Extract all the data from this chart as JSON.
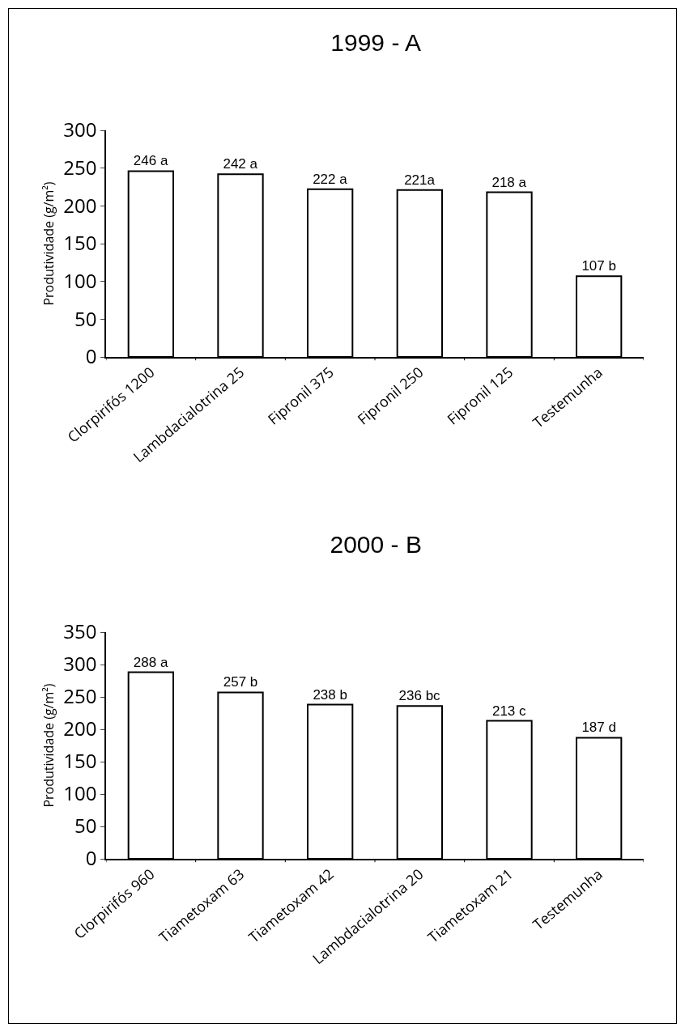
{
  "chart_data": [
    {
      "type": "bar",
      "title": "1999 - A",
      "ylabel": "Produtividade (g/m²)",
      "categories": [
        "Clorpirifós 1200",
        "Lambdacialotrina 25",
        "Fipronil 375",
        "Fipronil 250",
        "Fipronil 125",
        "Testemunha"
      ],
      "values": [
        246,
        242,
        222,
        221,
        218,
        107
      ],
      "value_labels": [
        "246 a",
        "242 a",
        "222 a",
        "221a",
        "218 a",
        "107 b"
      ],
      "color": "#ffffff",
      "ylim": [
        0,
        300
      ],
      "yticks": [
        0,
        50,
        100,
        150,
        200,
        250,
        300
      ]
    },
    {
      "type": "bar",
      "title": "2000 - B",
      "ylabel": "Produtividade (g/m²)",
      "categories": [
        "Clorpirifós 960",
        "Tiametoxam 63",
        "Tiametoxam 42",
        "Lambdacialotrina 20",
        "Tiametoxam 21",
        "Testemunha"
      ],
      "values": [
        288,
        257,
        238,
        236,
        213,
        187
      ],
      "value_labels": [
        "288 a",
        "257 b",
        "238 b",
        "236 bc",
        "213 c",
        "187 d"
      ],
      "color": "#ffffff",
      "ylim": [
        0,
        350
      ],
      "yticks": [
        0,
        50,
        100,
        150,
        200,
        250,
        300,
        350
      ]
    }
  ]
}
